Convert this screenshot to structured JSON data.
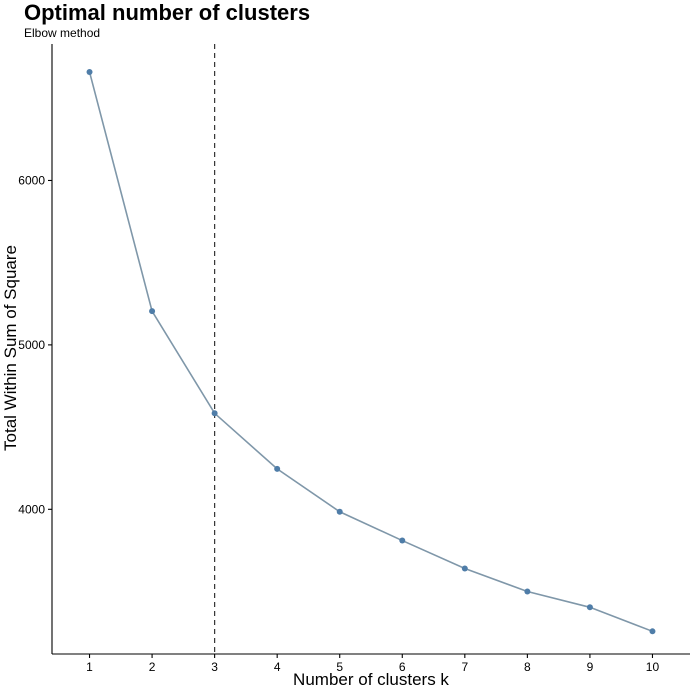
{
  "chart_data": {
    "type": "line",
    "title": "Optimal number of clusters",
    "subtitle": "Elbow method",
    "xlabel": "Number of clusters k",
    "ylabel": "Total Within Sum of Square",
    "x": [
      1,
      2,
      3,
      4,
      5,
      6,
      7,
      8,
      9,
      10
    ],
    "x_tick_labels": [
      "1",
      "2",
      "3",
      "4",
      "5",
      "6",
      "7",
      "8",
      "9",
      "10"
    ],
    "series": [
      {
        "values": [
          6660,
          5205,
          4584,
          4246,
          3985,
          3810,
          3640,
          3500,
          3404,
          3258
        ]
      }
    ],
    "y_ticks": [
      4000,
      5000,
      6000
    ],
    "y_tick_labels": [
      "4000",
      "5000",
      "6000"
    ],
    "xlim": [
      0.4,
      10.6
    ],
    "ylim": [
      3120,
      6830
    ],
    "reference_line": {
      "x": 3,
      "style": "dashed",
      "color": "#333333"
    },
    "line_color": "#7f97a9",
    "point_color": "#4f7da8",
    "grid": false,
    "legend": "none"
  }
}
